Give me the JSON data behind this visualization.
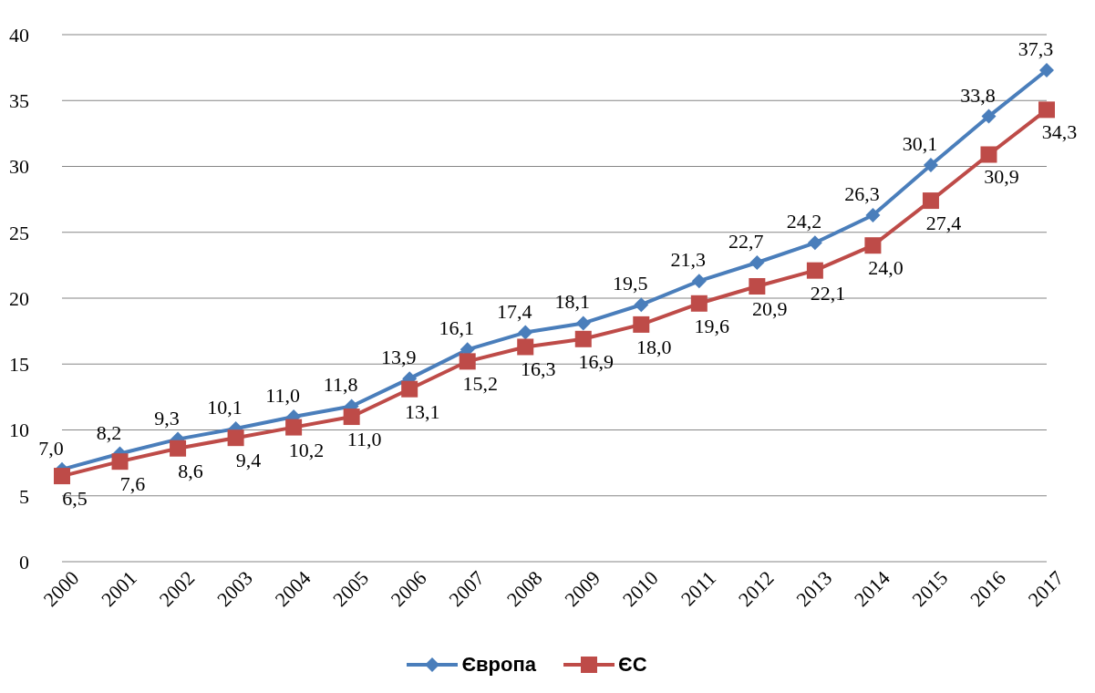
{
  "chart_data": {
    "type": "line",
    "categories": [
      "2000",
      "2001",
      "2002",
      "2003",
      "2004",
      "2005",
      "2006",
      "2007",
      "2008",
      "2009",
      "2010",
      "2011",
      "2012",
      "2013",
      "2014",
      "2015",
      "2016",
      "2017"
    ],
    "series": [
      {
        "name": "Європа",
        "color": "#4a7ebb",
        "marker": "diamond",
        "values": [
          7.0,
          8.2,
          9.3,
          10.1,
          11.0,
          11.8,
          13.9,
          16.1,
          17.4,
          18.1,
          19.5,
          21.3,
          22.7,
          24.2,
          26.3,
          30.1,
          33.8,
          37.3
        ],
        "value_labels": [
          "7,0",
          "8,2",
          "9,3",
          "10,1",
          "11,0",
          "11,8",
          "13,9",
          "16,1",
          "17,4",
          "18,1",
          "19,5",
          "21,3",
          "22,7",
          "24,2",
          "26,3",
          "30,1",
          "33,8",
          "37,3"
        ]
      },
      {
        "name": "ЄС",
        "color": "#be4b48",
        "marker": "square",
        "values": [
          6.5,
          7.6,
          8.6,
          9.4,
          10.2,
          11.0,
          13.1,
          15.2,
          16.3,
          16.9,
          18.0,
          19.6,
          20.9,
          22.1,
          24.0,
          27.4,
          30.9,
          34.3
        ],
        "value_labels": [
          "6,5",
          "7,6",
          "8,6",
          "9,4",
          "10,2",
          "11,0",
          "13,1",
          "15,2",
          "16,3",
          "16,9",
          "18,0",
          "19,6",
          "20,9",
          "22,1",
          "24,0",
          "27,4",
          "30,9",
          "34,3"
        ]
      }
    ],
    "ylim": [
      0,
      40
    ],
    "yticks": [
      0,
      5,
      10,
      15,
      20,
      25,
      30,
      35,
      40
    ],
    "grid": "y",
    "legend": "bottom"
  }
}
